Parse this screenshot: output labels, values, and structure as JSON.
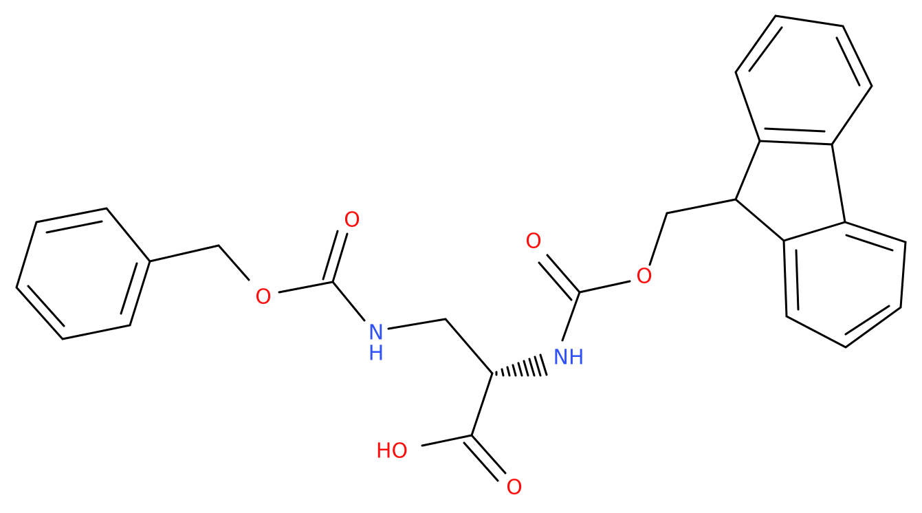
{
  "atoms": [
    {
      "label": "O"
    },
    {
      "label": "O"
    },
    {
      "label": "N",
      "h": "H"
    },
    {
      "label": "O"
    },
    {
      "label": "O"
    },
    {
      "label": "NH"
    },
    {
      "label": "HO"
    },
    {
      "label": "O"
    }
  ]
}
